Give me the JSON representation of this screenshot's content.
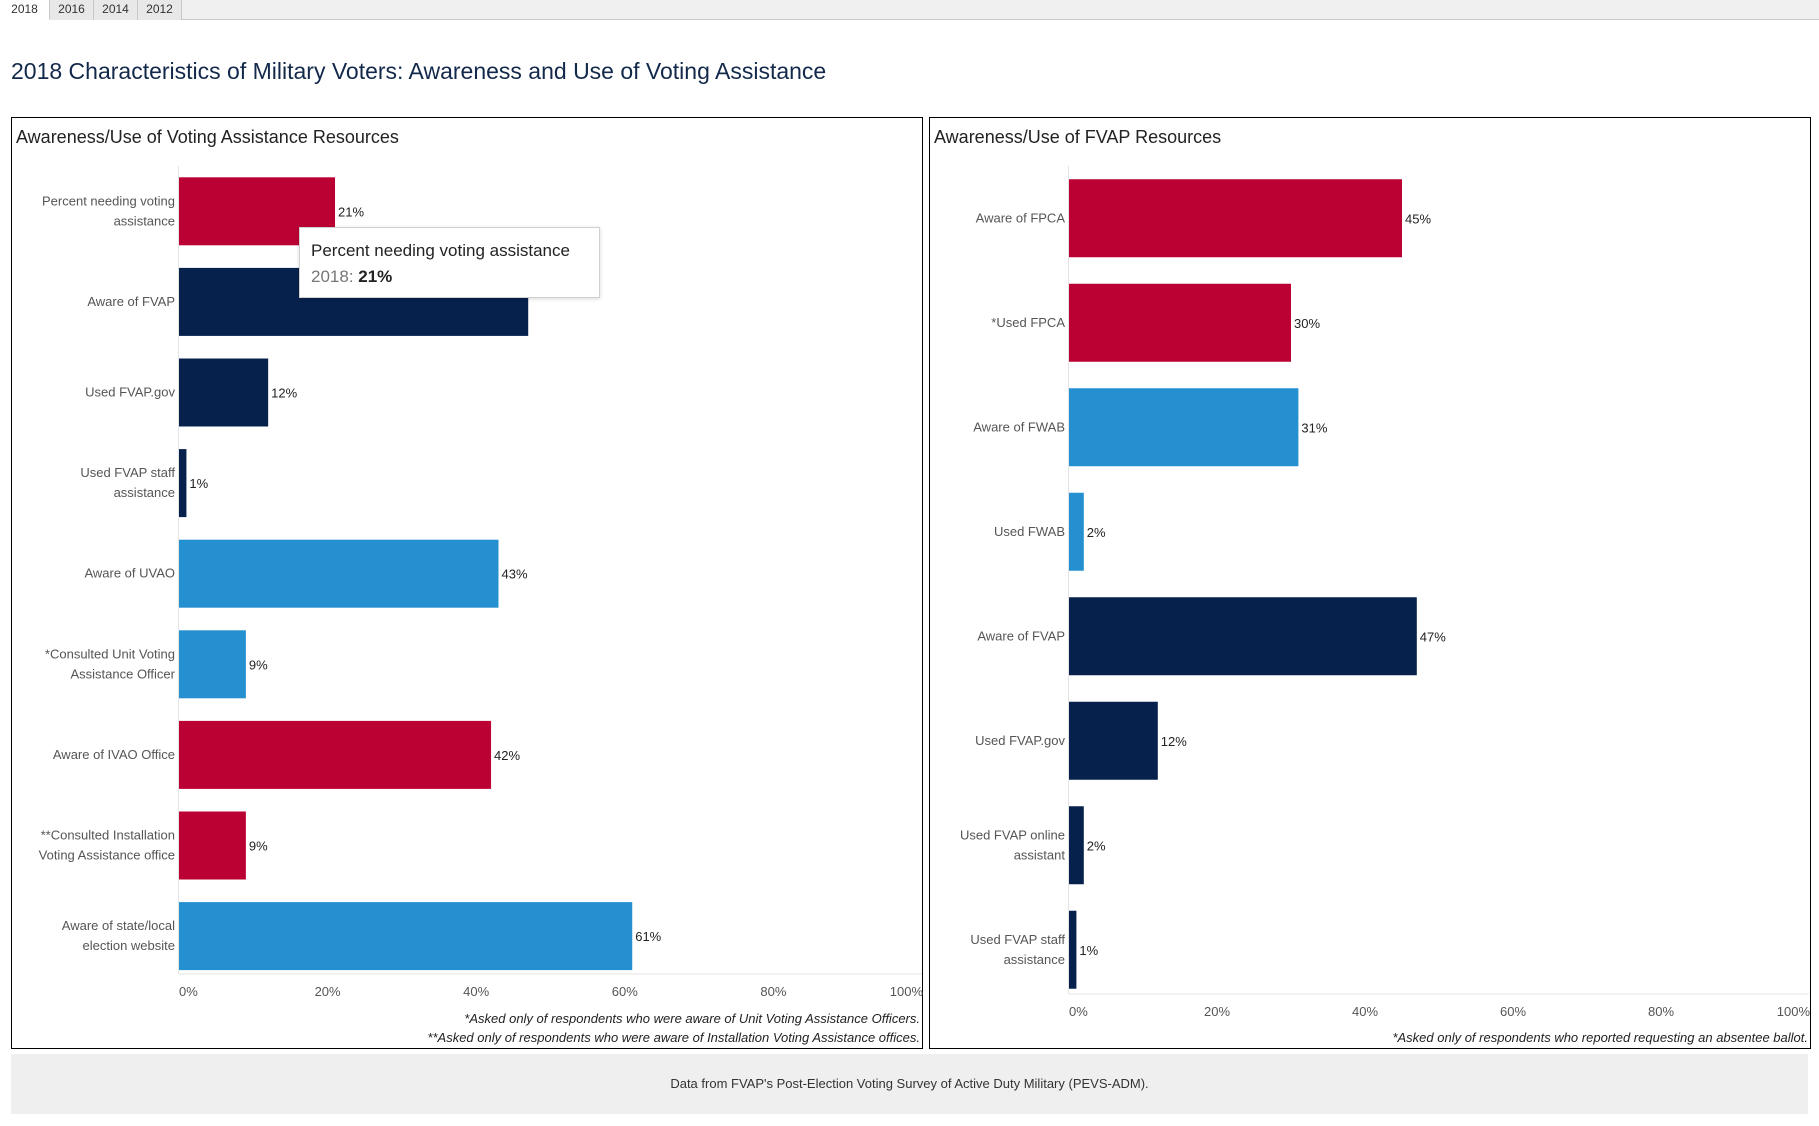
{
  "tabs": [
    {
      "label": "2018",
      "active": true
    },
    {
      "label": "2016",
      "active": false
    },
    {
      "label": "2014",
      "active": false
    },
    {
      "label": "2012",
      "active": false
    }
  ],
  "page_title": "2018 Characteristics of Military Voters: Awareness and Use of Voting Assistance",
  "colors": {
    "red": "#bb0034",
    "navy": "#07214d",
    "blue": "#2590d0"
  },
  "left_panel": {
    "title": "Awareness/Use of Voting Assistance Resources",
    "footnotes": [
      "*Asked only of respondents who were aware of Unit Voting Assistance Officers.",
      "**Asked only of respondents who were aware of Installation Voting Assistance offices."
    ]
  },
  "right_panel": {
    "title": "Awareness/Use of FVAP Resources",
    "footnotes": [
      "*Asked only of respondents who reported requesting an absentee ballot."
    ]
  },
  "tooltip": {
    "title": "Percent needing voting assistance",
    "label": "2018: ",
    "value": "21%"
  },
  "source": "Data from FVAP's Post-Election Voting Survey of Active Duty Military (PEVS-ADM).",
  "chart_data": [
    {
      "type": "bar",
      "orientation": "horizontal",
      "title": "Awareness/Use of Voting Assistance Resources",
      "xlim": [
        0,
        100
      ],
      "x_ticks": [
        "0%",
        "20%",
        "40%",
        "60%",
        "80%",
        "100%"
      ],
      "categories": [
        [
          "Percent needing voting",
          "assistance"
        ],
        [
          "Aware of FVAP"
        ],
        [
          "Used FVAP.gov"
        ],
        [
          "Used FVAP staff",
          "assistance"
        ],
        [
          "Aware of UVAO"
        ],
        [
          "*Consulted Unit Voting",
          "Assistance Officer"
        ],
        [
          "Aware of IVAO Office"
        ],
        [
          "**Consulted Installation",
          "Voting Assistance office"
        ],
        [
          "Aware of state/local",
          "election website"
        ]
      ],
      "values": [
        21,
        47,
        12,
        1,
        43,
        9,
        42,
        9,
        61
      ],
      "labels": [
        "21%",
        "",
        "12%",
        "1%",
        "43%",
        "9%",
        "42%",
        "9%",
        "61%"
      ],
      "colors": [
        "red",
        "navy",
        "navy",
        "navy",
        "blue",
        "blue",
        "red",
        "red",
        "blue"
      ],
      "grid": false
    },
    {
      "type": "bar",
      "orientation": "horizontal",
      "title": "Awareness/Use of FVAP Resources",
      "xlim": [
        0,
        100
      ],
      "x_ticks": [
        "0%",
        "20%",
        "40%",
        "60%",
        "80%",
        "100%"
      ],
      "categories": [
        [
          "Aware of FPCA"
        ],
        [
          "*Used FPCA"
        ],
        [
          "Aware of FWAB"
        ],
        [
          "Used FWAB"
        ],
        [
          "Aware of FVAP"
        ],
        [
          "Used FVAP.gov"
        ],
        [
          "Used FVAP online",
          "assistant"
        ],
        [
          "Used FVAP staff",
          "assistance"
        ]
      ],
      "values": [
        45,
        30,
        31,
        2,
        47,
        12,
        2,
        1
      ],
      "labels": [
        "45%",
        "30%",
        "31%",
        "2%",
        "47%",
        "12%",
        "2%",
        "1%"
      ],
      "colors": [
        "red",
        "red",
        "blue",
        "blue",
        "navy",
        "navy",
        "navy",
        "navy"
      ],
      "grid": false
    }
  ]
}
